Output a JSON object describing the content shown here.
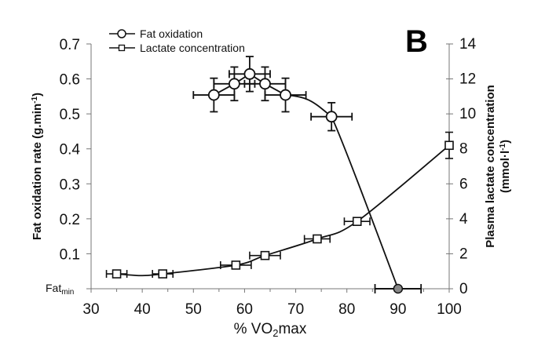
{
  "chart_data": {
    "type": "line",
    "panel_label": "B",
    "xlabel_prefix": "% VO",
    "xlabel_sub": "2",
    "xlabel_suffix": "max",
    "ylabel_left": "Fat oxidation rate (g.min",
    "ylabel_left_sup": "-1",
    "ylabel_left_close": ")",
    "ylabel_right_line1": "Plasma lactate concentration",
    "ylabel_right_line2_prefix": "(mmol·l",
    "ylabel_right_line2_sup": "-1",
    "ylabel_right_line2_close": ")",
    "xlim": [
      30,
      100
    ],
    "ylim_left": [
      0,
      0.7
    ],
    "ylim_right": [
      0,
      14
    ],
    "x_ticks": [
      "30",
      "40",
      "50",
      "60",
      "70",
      "80",
      "90",
      "100"
    ],
    "y_left_ticks": [
      "0.1",
      "0.2",
      "0.3",
      "0.4",
      "0.5",
      "0.6",
      "0.7"
    ],
    "y_left_zero_label": "Fat",
    "y_left_zero_label_sub": "min",
    "y_right_ticks": [
      "0",
      "2",
      "4",
      "6",
      "8",
      "10",
      "12",
      "14"
    ],
    "grid": false,
    "legend_position": "top-left",
    "series": [
      {
        "name": "Fat oxidation",
        "axis": "left",
        "marker": "circle",
        "points": [
          {
            "x": 54,
            "y": 0.554,
            "xerr": 4,
            "yerr": 0.048
          },
          {
            "x": 58,
            "y": 0.586,
            "xerr": 4,
            "yerr": 0.048
          },
          {
            "x": 61,
            "y": 0.614,
            "xerr": 4,
            "yerr": 0.05
          },
          {
            "x": 64,
            "y": 0.586,
            "xerr": 4,
            "yerr": 0.048
          },
          {
            "x": 68,
            "y": 0.554,
            "xerr": 4,
            "yerr": 0.048
          },
          {
            "x": 77,
            "y": 0.492,
            "xerr": 4,
            "yerr": 0.04
          }
        ],
        "end_point": {
          "x": 90,
          "y": 0,
          "xerr": 4.5,
          "label": "Fatmin",
          "fill": "#888888"
        }
      },
      {
        "name": "Lactate concentration",
        "axis": "right",
        "marker": "square",
        "points": [
          {
            "x": 35,
            "y": 0.85,
            "xerr": 2,
            "yerr": 0
          },
          {
            "x": 44,
            "y": 0.85,
            "xerr": 2,
            "yerr": 0
          },
          {
            "x": 58.3,
            "y": 1.35,
            "xerr": 3,
            "yerr": 0
          },
          {
            "x": 64,
            "y": 1.9,
            "xerr": 3,
            "yerr": 0
          },
          {
            "x": 74.2,
            "y": 2.85,
            "xerr": 2.5,
            "yerr": 0
          },
          {
            "x": 82,
            "y": 3.85,
            "xerr": 2.5,
            "yerr": 0
          },
          {
            "x": 100,
            "y": 8.2,
            "xerr": 0,
            "yerr": 0.75
          }
        ]
      }
    ]
  }
}
